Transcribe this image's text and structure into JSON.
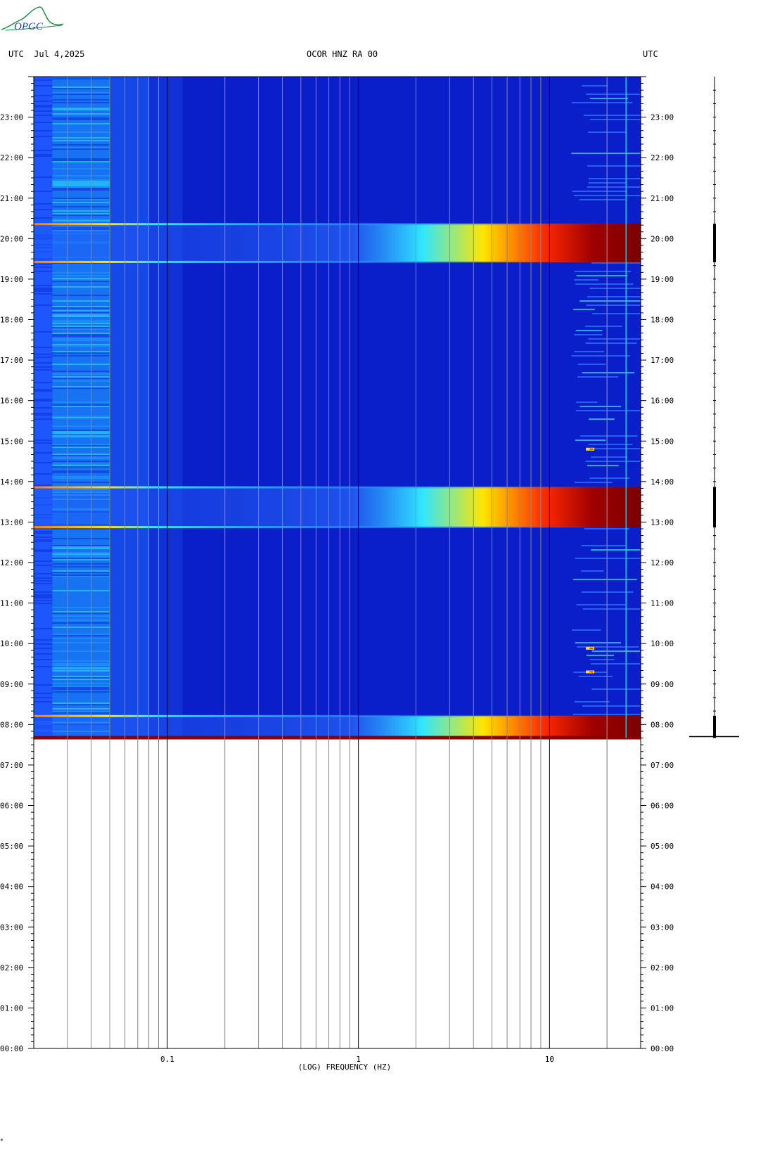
{
  "header": {
    "left": "UTC  Jul 4,2025",
    "center": "OCOR HNZ RA 00",
    "right": "UTC"
  },
  "logo": {
    "text": "OPGC"
  },
  "footnote": "*",
  "colors": {
    "background_blue": "#0a1fc9",
    "mid_blue": "#1f50ee",
    "cyan": "#2fe6ff",
    "yellow": "#ffe600",
    "dark_red": "#8b0000",
    "no_data": "#ffffff"
  },
  "chart_data": {
    "type": "heatmap",
    "title": "",
    "xlabel": "(LOG) FREQUENCY (HZ)",
    "ylabel": "",
    "x_scale": "log",
    "xlim": [
      0.02,
      30
    ],
    "x_ticks": [
      {
        "value": 0.1,
        "label": "0.1"
      },
      {
        "value": 1,
        "label": "1"
      },
      {
        "value": 10,
        "label": "10"
      }
    ],
    "ylim": [
      "00:00",
      "24:00"
    ],
    "y_ticks": [
      "00:00",
      "01:00",
      "02:00",
      "03:00",
      "04:00",
      "05:00",
      "06:00",
      "07:00",
      "08:00",
      "09:00",
      "10:00",
      "11:00",
      "12:00",
      "13:00",
      "14:00",
      "15:00",
      "16:00",
      "17:00",
      "18:00",
      "19:00",
      "20:00",
      "21:00",
      "22:00",
      "23:00"
    ],
    "data_start": "07:40",
    "data_end": "24:00",
    "high_energy_bands": [
      {
        "start": "07:40",
        "end": "08:13"
      },
      {
        "start": "12:52",
        "end": "13:52"
      },
      {
        "start": "19:25",
        "end": "20:22"
      }
    ],
    "spikes": [
      "14:48",
      "09:53",
      "09:18"
    ],
    "grid": true
  }
}
